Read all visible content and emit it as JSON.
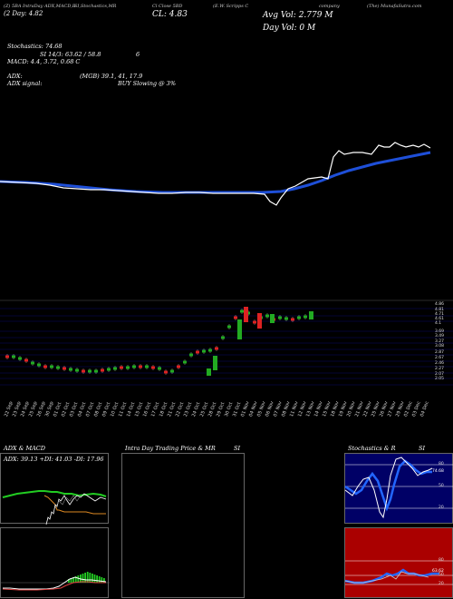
{
  "header": {
    "chart_tabs": "(Z) 5BA IntraDay ADX,MACD,B",
    "stoch_tab": "SI,Stochastics,MR",
    "close_tab": "Cl Close 5BD",
    "company_tab": "(E.W. Scripps C",
    "company_suffix": "company",
    "site": "(The) MunafaSutra.com",
    "day_label": "(2 Day: 4.82",
    "close_label": "CL: 4.83",
    "avg_vol": "Avg Vol: 2.779 M",
    "day_vol": "Day Vol: 0  M"
  },
  "indicators": {
    "stochastics": "Stochastics: 74.68",
    "si": "SI 14/3: 63.62 / 58.8",
    "si_num": "6",
    "macd": "MACD: 4.4, 3.72, 0.68  C",
    "adx": "ADX:",
    "adx_vals": "(MGB) 39.1, 41, 17.9",
    "adx_signal": "ADX  signal:",
    "buy_signal": "BUY Slowing @ 3%"
  },
  "price_axis": [
    "4.86",
    "4.81",
    "4.71",
    "4.61",
    "4.1",
    "3.69",
    "3.49",
    "3.27",
    "3.08",
    "2.87",
    "2.67",
    "2.46",
    "2.27",
    "2.07",
    "2.05"
  ],
  "dates": [
    "22 Sep",
    "23 Sep",
    "24 Sep",
    "25 Sep",
    "26 Sep",
    "30 Sep",
    "01 Oct",
    "02 Oct",
    "03 Oct",
    "04 Oct",
    "07 Oct",
    "08 Oct",
    "09 Oct",
    "10 Oct",
    "11 Oct",
    "14 Oct",
    "15 Oct",
    "16 Oct",
    "17 Oct",
    "18 Oct",
    "21 Oct",
    "22 Oct",
    "23 Oct",
    "24 Oct",
    "25 Oct",
    "28 Oct",
    "29 Oct",
    "30 Oct",
    "31 Oct",
    "01 Nov",
    "04 Nov",
    "05 Nov",
    "06 Nov",
    "07 Nov",
    "08 Nov",
    "11 Nov",
    "12 Nov",
    "13 Nov",
    "14 Nov",
    "15 Nov",
    "18 Nov",
    "19 Nov",
    "20 Nov",
    "21 Nov",
    "22 Nov",
    "25 Nov",
    "26 Nov",
    "27 Nov",
    "29 Nov",
    "02 Dec",
    "03 Dec",
    "04 Dec"
  ],
  "panels": {
    "adx_title": "ADX  & MACD",
    "adx_values": "ADX: 39.13  +DI: 41.03  -DI: 17.96",
    "intraday_title": "Intra Day Trading Price  & MR",
    "intraday_si": "SI",
    "stoch_title": "Stochastics & R",
    "stoch_si": "SI",
    "stoch_axis": [
      "80",
      "50",
      "20"
    ],
    "stoch_value": "74.68",
    "rsi_axis": [
      "80",
      "50",
      "20"
    ],
    "rsi_value": "63.62"
  },
  "colors": {
    "sma_line": "#1e4fd8",
    "bull": "#22aa22",
    "bear": "#dd2222",
    "rsi_bg": "#aa0000",
    "stoch_bg": "#000066"
  }
}
